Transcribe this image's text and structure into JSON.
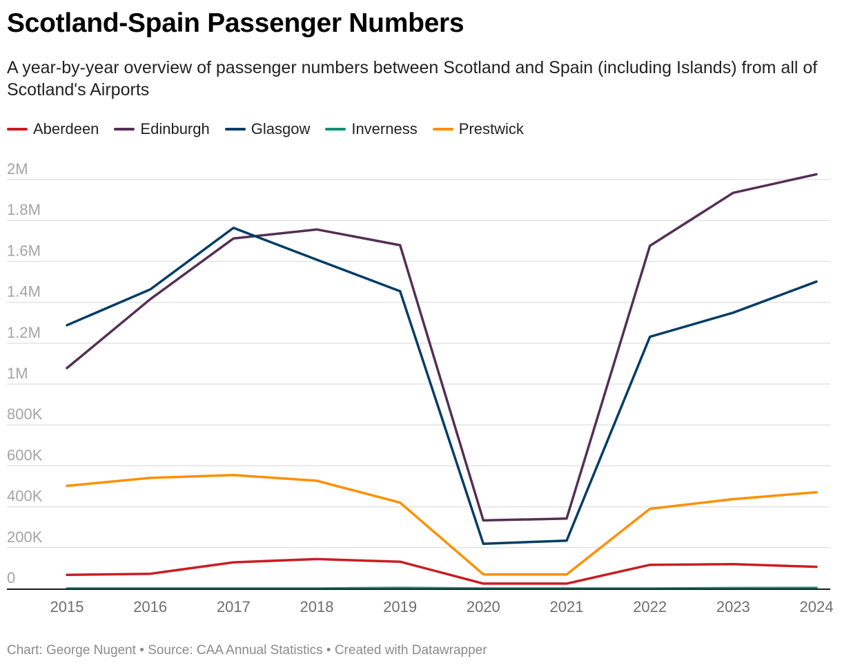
{
  "header": {
    "title": "Scotland-Spain Passenger Numbers",
    "subtitle": "A year-by-year overview of passenger numbers between Scotland and Spain (including Islands) from all of Scotland's Airports"
  },
  "footer": {
    "text": "Chart: George Nugent • Source: CAA Annual Statistics • Created with Datawrapper"
  },
  "chart_data": {
    "type": "line",
    "title": "Scotland-Spain Passenger Numbers",
    "subtitle": "A year-by-year overview of passenger numbers between Scotland and Spain (including Islands) from all of Scotland's Airports",
    "xlabel": "",
    "ylabel": "",
    "x": [
      "2015",
      "2016",
      "2017",
      "2018",
      "2019",
      "2020",
      "2021",
      "2022",
      "2023",
      "2024"
    ],
    "ylim": [
      0,
      2000000
    ],
    "yticks": [
      0,
      200000,
      400000,
      600000,
      800000,
      1000000,
      1200000,
      1400000,
      1600000,
      1800000,
      2000000
    ],
    "ytick_labels": [
      "0",
      "200K",
      "400K",
      "600K",
      "800K",
      "1M",
      "1.2M",
      "1.4M",
      "1.6M",
      "1.8M",
      "2M"
    ],
    "grid": true,
    "legend_position": "top-left",
    "series": [
      {
        "name": "Aberdeen",
        "color": "#c91d22",
        "values": [
          67000,
          72000,
          128000,
          144000,
          131000,
          24000,
          24000,
          116000,
          119000,
          106000
        ]
      },
      {
        "name": "Edinburgh",
        "color": "#542f54",
        "values": [
          1078000,
          1415000,
          1712000,
          1756000,
          1679000,
          333000,
          342000,
          1676000,
          1935000,
          2026000
        ]
      },
      {
        "name": "Glasgow",
        "color": "#003d66",
        "values": [
          1288000,
          1463000,
          1764000,
          1608000,
          1454000,
          219000,
          234000,
          1231000,
          1349000,
          1501000
        ]
      },
      {
        "name": "Inverness",
        "color": "#0d9271",
        "values": [
          0,
          0,
          0,
          0,
          3000,
          0,
          0,
          0,
          2000,
          3000
        ]
      },
      {
        "name": "Prestwick",
        "color": "#ff8f00",
        "values": [
          502000,
          541000,
          555000,
          527000,
          420000,
          69000,
          69000,
          390000,
          437000,
          471000
        ]
      }
    ],
    "source": "CAA Annual Statistics",
    "credit": "George Nugent"
  }
}
